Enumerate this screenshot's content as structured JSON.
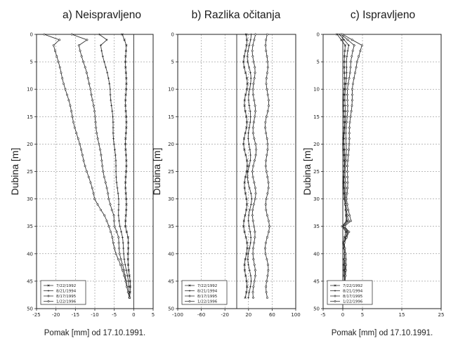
{
  "ylabel": "Dubina [m]",
  "xlabel": "Pomak [mm] od 17.10.1991.",
  "legend": [
    "7/22/1992",
    "8/21/1994",
    "8/17/1995",
    "1/22/1996"
  ],
  "chart_data": [
    {
      "type": "line",
      "title": "a) Neispravljeno",
      "ylabel": "Dubina [m]",
      "xlabel": "Pomak [mm] od 17.10.1991.",
      "xlim": [
        -25,
        5
      ],
      "xticks": [
        -25,
        -20,
        -15,
        -10,
        -5,
        0,
        5
      ],
      "ylim": [
        0,
        50
      ],
      "yticks": [
        0,
        5,
        10,
        15,
        20,
        25,
        30,
        35,
        40,
        45,
        50
      ],
      "y_inverted": true,
      "grid": true,
      "legend_position": "bottom-left",
      "series": [
        {
          "name": "7/22/1992",
          "y": [
            0,
            2,
            5,
            10,
            20,
            30,
            33,
            35,
            37,
            40,
            45,
            48
          ],
          "x": [
            -3,
            -2,
            -2,
            -2,
            -2,
            -2,
            -2,
            -2,
            -1.5,
            -1.5,
            -1,
            -1
          ]
        },
        {
          "name": "8/21/1994",
          "y": [
            0,
            1,
            2,
            5,
            10,
            20,
            30,
            33,
            35,
            37,
            40,
            45,
            48
          ],
          "x": [
            -9,
            -7,
            -8.5,
            -7.5,
            -6,
            -5,
            -4,
            -3.8,
            -3.5,
            -3,
            -2.5,
            -1.5,
            -1
          ]
        },
        {
          "name": "8/17/1995",
          "y": [
            0,
            1,
            2,
            5,
            10,
            20,
            30,
            33,
            35,
            37,
            40,
            45,
            48
          ],
          "x": [
            -16,
            -12,
            -14,
            -13,
            -11,
            -9,
            -6.5,
            -5,
            -5,
            -4,
            -3.5,
            -2,
            -1
          ]
        },
        {
          "name": "1/22/1996",
          "y": [
            0,
            1,
            2,
            5,
            10,
            20,
            30,
            33,
            35,
            37,
            40,
            45,
            48
          ],
          "x": [
            -23,
            -19,
            -20.5,
            -19.5,
            -17.5,
            -14,
            -10,
            -7.5,
            -6.5,
            -5.5,
            -4.5,
            -2,
            -1
          ]
        }
      ]
    },
    {
      "type": "line",
      "title": "b) Razlika očitanja",
      "ylabel": "Dubina [m]",
      "xlim": [
        -100,
        100
      ],
      "xticks": [
        -100,
        -60,
        -20,
        20,
        60,
        100
      ],
      "ylim": [
        0,
        50
      ],
      "yticks": [
        0,
        5,
        10,
        15,
        20,
        25,
        30,
        35,
        40,
        45,
        50
      ],
      "y_inverted": true,
      "grid": true,
      "legend_position": "bottom-left",
      "series": [
        {
          "name": "7/22/1992",
          "y": [
            0,
            5,
            10,
            15,
            20,
            25,
            30,
            35,
            40,
            45,
            48
          ],
          "x": [
            15,
            14,
            16,
            15,
            14,
            16,
            15,
            14,
            16,
            15,
            15
          ]
        },
        {
          "name": "8/21/1994",
          "y": [
            0,
            5,
            10,
            15,
            20,
            25,
            30,
            35,
            40,
            45,
            48
          ],
          "x": [
            22,
            20,
            23,
            21,
            22,
            20,
            23,
            22,
            21,
            22,
            22
          ]
        },
        {
          "name": "8/17/1995",
          "y": [
            0,
            5,
            10,
            15,
            20,
            25,
            30,
            35,
            40,
            45,
            48
          ],
          "x": [
            30,
            28,
            30,
            29,
            31,
            29,
            30,
            28,
            30,
            29,
            30
          ]
        },
        {
          "name": "1/22/1996",
          "y": [
            0,
            5,
            10,
            15,
            20,
            25,
            30,
            35,
            40,
            45,
            48
          ],
          "x": [
            52,
            50,
            53,
            51,
            50,
            52,
            51,
            53,
            50,
            52,
            52
          ]
        }
      ]
    },
    {
      "type": "line",
      "title": "c) Ispravljeno",
      "ylabel": "Dubina [m]",
      "xlabel": "Pomak [mm] od 17.10.1991.",
      "xlim": [
        -5,
        25
      ],
      "xticks": [
        -5,
        0,
        5,
        15,
        25
      ],
      "ylim": [
        0,
        50
      ],
      "yticks": [
        0,
        5,
        10,
        15,
        20,
        25,
        30,
        35,
        40,
        45,
        50
      ],
      "y_inverted": true,
      "grid": true,
      "legend_position": "bottom-left",
      "series": [
        {
          "name": "7/22/1992",
          "y": [
            0,
            2,
            5,
            10,
            20,
            30,
            34,
            35,
            36,
            38,
            40,
            45,
            48
          ],
          "x": [
            -1.5,
            0.5,
            0.5,
            0.3,
            0.2,
            0.3,
            1,
            0,
            0.8,
            0,
            0.4,
            0.3,
            0.2
          ]
        },
        {
          "name": "8/21/1994",
          "y": [
            0,
            2,
            5,
            10,
            20,
            30,
            34,
            35,
            36,
            38,
            40,
            45,
            48
          ],
          "x": [
            -1,
            1.5,
            1,
            0.7,
            0.4,
            0.4,
            1.2,
            0.1,
            1,
            0.2,
            0.5,
            0.4,
            0.2
          ]
        },
        {
          "name": "8/17/1995",
          "y": [
            0,
            2,
            5,
            10,
            20,
            30,
            34,
            35,
            36,
            38,
            40,
            45,
            48
          ],
          "x": [
            -0.5,
            3,
            2,
            1.3,
            0.8,
            0.6,
            1.5,
            0.2,
            1.2,
            0.3,
            0.6,
            0.5,
            0.2
          ]
        },
        {
          "name": "1/22/1996",
          "y": [
            0,
            2,
            5,
            10,
            20,
            30,
            34,
            35,
            36,
            38,
            40,
            45,
            48
          ],
          "x": [
            0,
            5,
            3.5,
            2.5,
            1.5,
            1,
            2,
            0.3,
            1.5,
            0.5,
            0.8,
            0.6,
            0.3
          ]
        }
      ]
    }
  ]
}
